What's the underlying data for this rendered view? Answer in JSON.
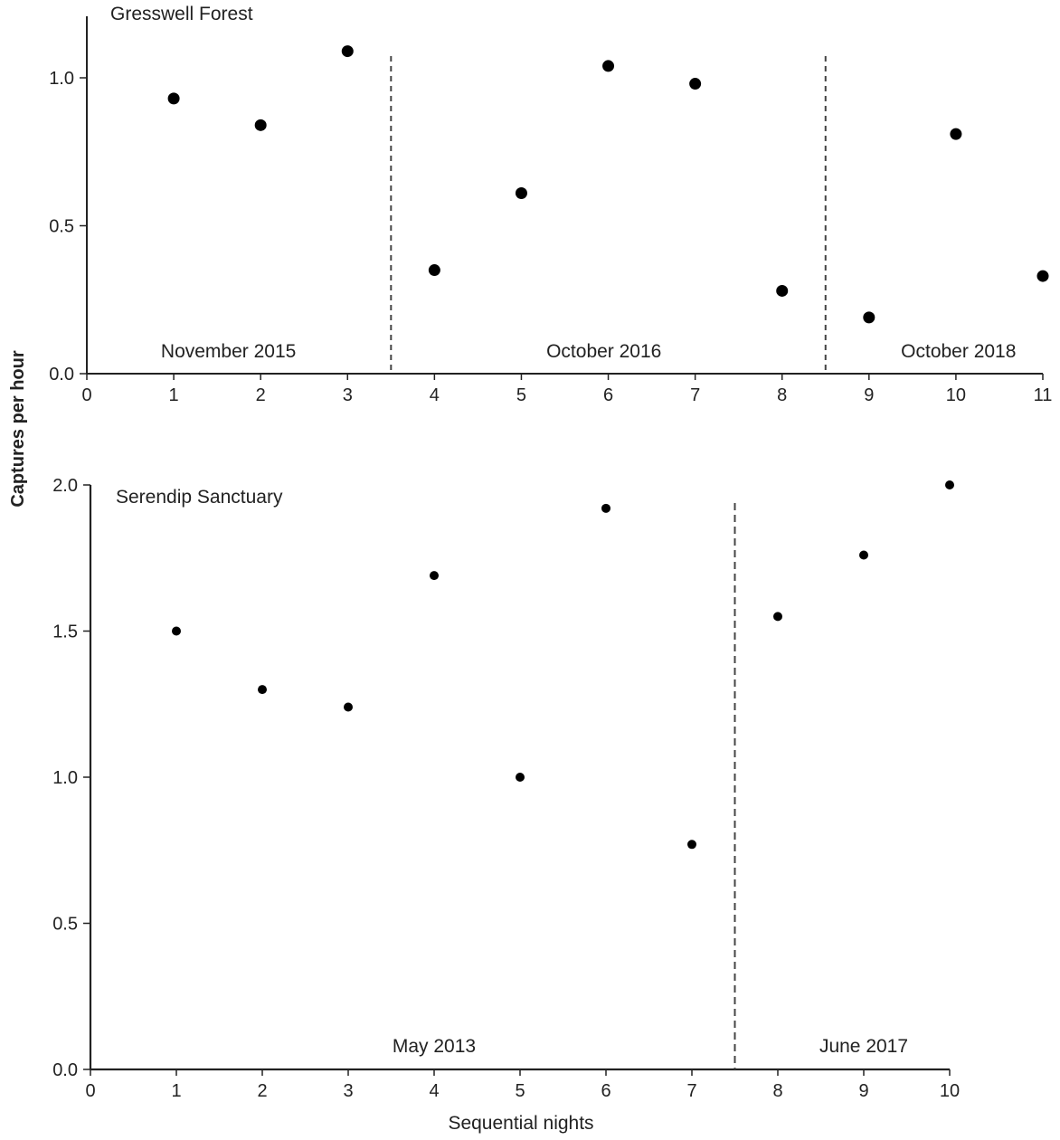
{
  "figure": {
    "ylabel": "Captures per hour",
    "xlabel": "Sequential nights"
  },
  "chart_data": [
    {
      "type": "scatter",
      "title": "Gresswell Forest",
      "xlim": [
        0,
        11
      ],
      "ylim": [
        0,
        1.2
      ],
      "xticks": [
        "0",
        "1",
        "2",
        "3",
        "4",
        "5",
        "6",
        "7",
        "8",
        "9",
        "10",
        "11"
      ],
      "yticks": [
        "0.0",
        "0.5",
        "1.0"
      ],
      "grid": false,
      "x": [
        1,
        2,
        3,
        4,
        5,
        6,
        7,
        8,
        9,
        10,
        11
      ],
      "y": [
        0.93,
        0.84,
        1.09,
        0.35,
        0.61,
        1.04,
        0.98,
        0.28,
        0.19,
        0.81,
        0.33
      ],
      "dividers": [
        3.5,
        8.5
      ],
      "periods": [
        {
          "label": "November 2015",
          "x_center": 1.63
        },
        {
          "label": "October 2016",
          "x_center": 5.95
        },
        {
          "label": "October 2018",
          "x_center": 10.03
        }
      ]
    },
    {
      "type": "scatter",
      "title": "Serendip Sanctuary",
      "xlim": [
        0,
        10
      ],
      "ylim": [
        0,
        2.0
      ],
      "xticks": [
        "0",
        "1",
        "2",
        "3",
        "4",
        "5",
        "6",
        "7",
        "8",
        "9",
        "10"
      ],
      "yticks": [
        "0.0",
        "0.5",
        "1.0",
        "1.5",
        "2.0"
      ],
      "grid": false,
      "x": [
        1,
        2,
        3,
        4,
        5,
        6,
        7,
        8,
        9,
        10
      ],
      "y": [
        1.5,
        1.3,
        1.24,
        1.69,
        1.0,
        1.92,
        0.77,
        1.55,
        1.76,
        2.0
      ],
      "dividers": [
        7.5
      ],
      "periods": [
        {
          "label": "May 2013",
          "x_center": 4.0
        },
        {
          "label": "June 2017",
          "x_center": 9.0
        }
      ]
    }
  ]
}
